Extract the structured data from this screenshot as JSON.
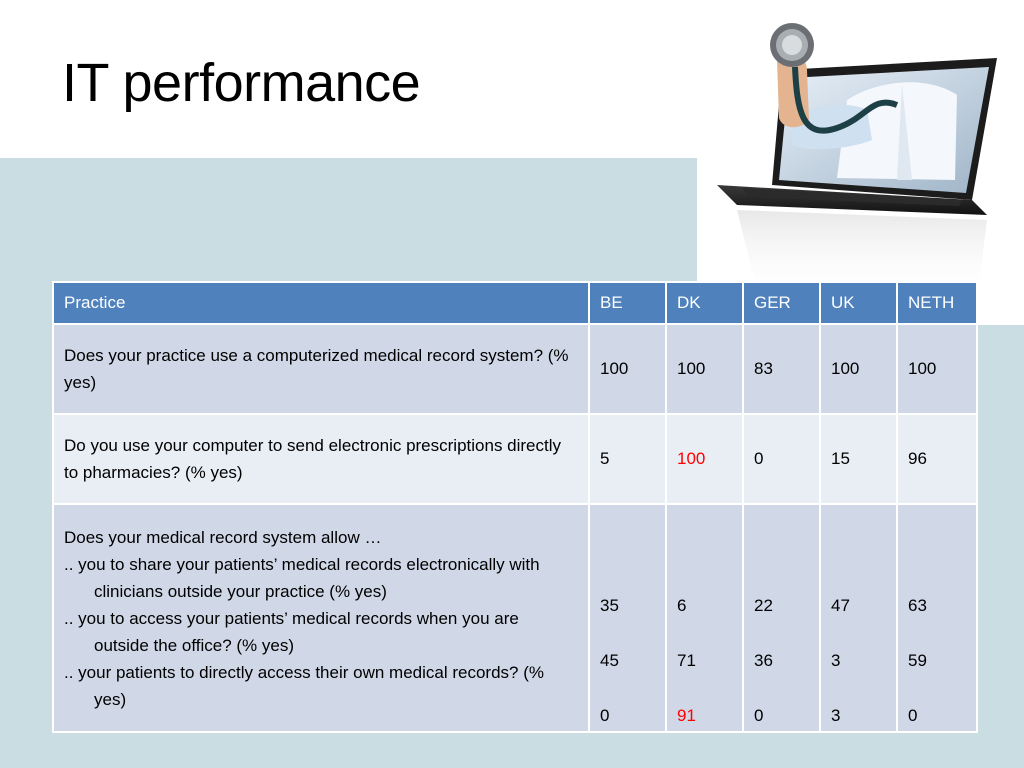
{
  "slide": {
    "title": "IT performance"
  },
  "colors": {
    "header_bg": "#4f81bd",
    "row_odd_bg": "#d0d8e8",
    "row_even_bg": "#e9edf4",
    "slide_band": "#c9dde2",
    "highlight": "#ff0000"
  },
  "hero_image": {
    "icon": "laptop-doctor-stethoscope-icon"
  },
  "table": {
    "headers": [
      "Practice",
      "BE",
      "DK",
      "GER",
      "UK",
      "NETH"
    ],
    "rows": [
      {
        "question": "Does your practice use a computerized medical record system?  (% yes)",
        "values": [
          "100",
          "100",
          "83",
          "100",
          "100"
        ]
      },
      {
        "question": "Do you use your computer to send electronic prescriptions directly to pharmacies? (% yes)",
        "values": [
          "5",
          "100",
          "0",
          "15",
          "96"
        ],
        "highlight": "DK"
      },
      {
        "question": "Does your medical record system allow …",
        "subitems": [
          ".. you to share your patients’ medical records electronically with clinicians outside your practice (% yes)",
          ".. you to access your patients’ medical records when you are outside the office? (% yes)",
          ".. your patients to directly access their own medical records?  (% yes)"
        ],
        "values": {
          "BE": [
            "35",
            "45",
            "0"
          ],
          "DK": [
            "6",
            "71",
            "91"
          ],
          "GER": [
            "22",
            "36",
            "0"
          ],
          "UK": [
            "47",
            "3",
            "3"
          ],
          "NETH": [
            "63",
            "59",
            "0"
          ]
        },
        "highlight": "DK.2"
      }
    ]
  }
}
